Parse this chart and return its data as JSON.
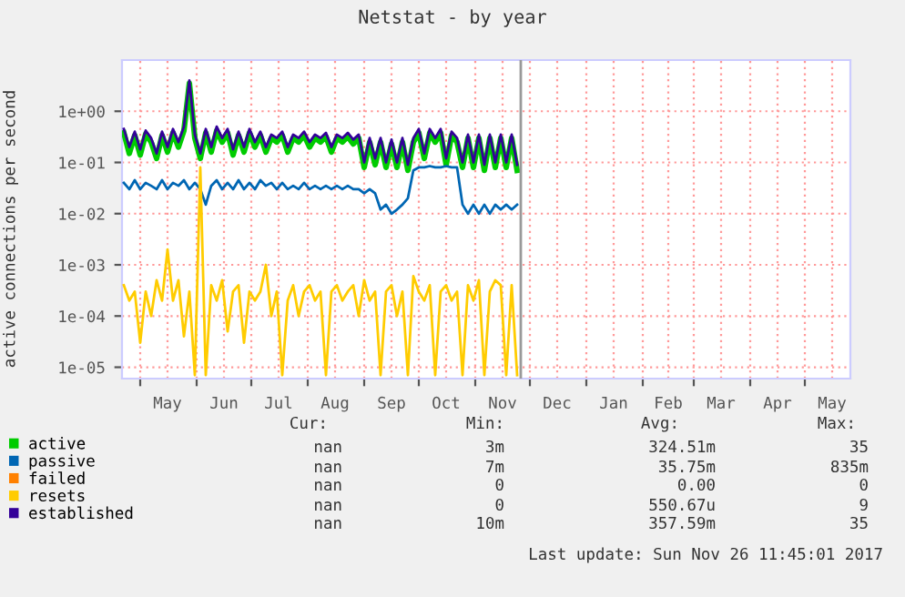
{
  "chart_data": {
    "type": "line",
    "title": "Netstat - by year",
    "ylabel": "active connections per second",
    "x": [
      "2017-04-22",
      "2017-04-25",
      "2017-04-28",
      "2017-05-01",
      "2017-05-04",
      "2017-05-07",
      "2017-05-10",
      "2017-05-13",
      "2017-05-16",
      "2017-05-19",
      "2017-05-22",
      "2017-05-25",
      "2017-05-28",
      "2017-05-31",
      "2017-06-03",
      "2017-06-06",
      "2017-06-09",
      "2017-06-12",
      "2017-06-15",
      "2017-06-18",
      "2017-06-21",
      "2017-06-24",
      "2017-06-27",
      "2017-06-30",
      "2017-07-03",
      "2017-07-06",
      "2017-07-09",
      "2017-07-12",
      "2017-07-15",
      "2017-07-18",
      "2017-07-21",
      "2017-07-24",
      "2017-07-27",
      "2017-07-30",
      "2017-08-02",
      "2017-08-05",
      "2017-08-08",
      "2017-08-11",
      "2017-08-14",
      "2017-08-17",
      "2017-08-20",
      "2017-08-23",
      "2017-08-26",
      "2017-08-29",
      "2017-09-01",
      "2017-09-04",
      "2017-09-07",
      "2017-09-10",
      "2017-09-13",
      "2017-09-16",
      "2017-09-19",
      "2017-09-22",
      "2017-09-25",
      "2017-09-28",
      "2017-10-01",
      "2017-10-04",
      "2017-10-07",
      "2017-10-10",
      "2017-10-13",
      "2017-10-16",
      "2017-10-19",
      "2017-10-22",
      "2017-10-25",
      "2017-10-28",
      "2017-10-31",
      "2017-11-03",
      "2017-11-06",
      "2017-11-09",
      "2017-11-12",
      "2017-11-15",
      "2017-11-18",
      "2017-11-21",
      "2017-11-24"
    ],
    "series": [
      {
        "name": "active",
        "color": "#00cc00",
        "values": [
          0.38,
          0.15,
          0.34,
          0.14,
          0.36,
          0.25,
          0.12,
          0.34,
          0.16,
          0.38,
          0.2,
          0.42,
          3.5,
          0.3,
          0.12,
          0.38,
          0.16,
          0.42,
          0.25,
          0.38,
          0.14,
          0.34,
          0.16,
          0.38,
          0.2,
          0.34,
          0.16,
          0.3,
          0.25,
          0.34,
          0.16,
          0.3,
          0.25,
          0.34,
          0.2,
          0.3,
          0.25,
          0.32,
          0.16,
          0.3,
          0.25,
          0.32,
          0.23,
          0.3,
          0.08,
          0.25,
          0.09,
          0.25,
          0.08,
          0.23,
          0.08,
          0.25,
          0.07,
          0.25,
          0.38,
          0.12,
          0.38,
          0.25,
          0.38,
          0.09,
          0.34,
          0.25,
          0.08,
          0.3,
          0.08,
          0.3,
          0.07,
          0.3,
          0.08,
          0.3,
          0.08,
          0.3,
          0.07
        ]
      },
      {
        "name": "passive",
        "color": "#0066b3",
        "values": [
          0.04,
          0.03,
          0.045,
          0.03,
          0.04,
          0.035,
          0.03,
          0.045,
          0.03,
          0.04,
          0.035,
          0.045,
          0.03,
          0.04,
          0.03,
          0.015,
          0.035,
          0.045,
          0.03,
          0.04,
          0.03,
          0.045,
          0.03,
          0.04,
          0.03,
          0.045,
          0.035,
          0.04,
          0.03,
          0.04,
          0.03,
          0.035,
          0.03,
          0.04,
          0.03,
          0.035,
          0.03,
          0.035,
          0.03,
          0.035,
          0.03,
          0.035,
          0.03,
          0.03,
          0.025,
          0.03,
          0.025,
          0.012,
          0.015,
          0.01,
          0.012,
          0.015,
          0.02,
          0.07,
          0.08,
          0.08,
          0.085,
          0.08,
          0.08,
          0.085,
          0.08,
          0.08,
          0.015,
          0.01,
          0.015,
          0.01,
          0.015,
          0.01,
          0.015,
          0.012,
          0.015,
          0.012,
          0.015
        ]
      },
      {
        "name": "failed",
        "color": "#ff8000",
        "values": [
          null,
          null,
          null,
          null,
          null,
          null,
          null,
          null,
          null,
          null,
          null,
          null,
          null,
          null,
          null,
          null,
          null,
          null,
          null,
          null,
          null,
          null,
          null,
          null,
          null,
          null,
          null,
          null,
          null,
          null,
          null,
          null,
          null,
          null,
          null,
          null,
          null,
          null,
          null,
          null,
          null,
          null,
          null,
          null,
          null,
          null,
          null,
          null,
          null,
          null,
          null,
          null,
          null,
          null,
          null,
          null,
          null,
          null,
          null,
          null,
          null,
          null,
          null,
          null,
          null,
          null,
          null,
          null,
          null,
          null,
          null,
          null,
          null
        ]
      },
      {
        "name": "resets",
        "color": "#ffcc00",
        "values": [
          0.0004,
          0.0002,
          0.0003,
          3e-05,
          0.0003,
          0.0001,
          0.0005,
          0.0002,
          0.002,
          0.0002,
          0.0005,
          4e-05,
          0.0003,
          7e-06,
          0.08,
          7e-06,
          0.0004,
          0.0002,
          0.0005,
          5e-05,
          0.0003,
          0.0004,
          3e-05,
          0.0003,
          0.0002,
          0.0003,
          0.001,
          0.0001,
          0.0003,
          7e-06,
          0.0002,
          0.0004,
          0.0001,
          0.0003,
          0.0004,
          0.0002,
          0.0003,
          7e-06,
          0.0003,
          0.0004,
          0.0002,
          0.0003,
          0.0004,
          0.0001,
          0.0005,
          0.0002,
          0.0003,
          7e-06,
          0.0003,
          0.0004,
          0.0001,
          0.0003,
          7e-06,
          0.0006,
          0.0003,
          0.0002,
          0.0004,
          7e-06,
          0.0003,
          0.0004,
          0.0002,
          0.0003,
          7e-06,
          0.0004,
          0.0002,
          0.0005,
          7e-06,
          0.0003,
          0.0005,
          0.0004,
          7e-06,
          0.0004,
          7e-06
        ]
      },
      {
        "name": "established",
        "color": "#330099",
        "values": [
          0.45,
          0.2,
          0.4,
          0.18,
          0.42,
          0.3,
          0.15,
          0.4,
          0.2,
          0.45,
          0.25,
          0.5,
          4.0,
          0.35,
          0.15,
          0.45,
          0.2,
          0.5,
          0.3,
          0.45,
          0.18,
          0.4,
          0.2,
          0.45,
          0.25,
          0.4,
          0.2,
          0.35,
          0.3,
          0.4,
          0.2,
          0.35,
          0.3,
          0.4,
          0.25,
          0.35,
          0.3,
          0.38,
          0.2,
          0.35,
          0.3,
          0.38,
          0.28,
          0.35,
          0.1,
          0.3,
          0.12,
          0.3,
          0.1,
          0.28,
          0.1,
          0.3,
          0.09,
          0.3,
          0.45,
          0.15,
          0.45,
          0.3,
          0.45,
          0.12,
          0.4,
          0.3,
          0.1,
          0.35,
          0.1,
          0.35,
          0.09,
          0.35,
          0.1,
          0.35,
          0.1,
          0.35,
          0.09
        ]
      }
    ],
    "log": "y",
    "xlim": [
      "2017-04-21",
      "2018-05-26"
    ],
    "xticks": [
      {
        "value": "2017-05-01",
        "label": null
      },
      {
        "value": "2017-05-16",
        "label": "May"
      },
      {
        "value": "2017-06-01",
        "label": null
      },
      {
        "value": "2017-06-16",
        "label": "Jun"
      },
      {
        "value": "2017-07-01",
        "label": null
      },
      {
        "value": "2017-07-16",
        "label": "Jul"
      },
      {
        "value": "2017-08-01",
        "label": null
      },
      {
        "value": "2017-08-16",
        "label": "Aug"
      },
      {
        "value": "2017-09-01",
        "label": null
      },
      {
        "value": "2017-09-16",
        "label": "Sep"
      },
      {
        "value": "2017-10-01",
        "label": null
      },
      {
        "value": "2017-10-16",
        "label": "Oct"
      },
      {
        "value": "2017-11-01",
        "label": null
      },
      {
        "value": "2017-11-16",
        "label": "Nov"
      },
      {
        "value": "2017-12-01",
        "label": null
      },
      {
        "value": "2017-12-16",
        "label": "Dec"
      },
      {
        "value": "2018-01-01",
        "label": null
      },
      {
        "value": "2018-01-16",
        "label": "Jan"
      },
      {
        "value": "2018-02-01",
        "label": null
      },
      {
        "value": "2018-02-15",
        "label": "Feb"
      },
      {
        "value": "2018-03-01",
        "label": null
      },
      {
        "value": "2018-03-16",
        "label": "Mar"
      },
      {
        "value": "2018-04-01",
        "label": null
      },
      {
        "value": "2018-04-16",
        "label": "Apr"
      },
      {
        "value": "2018-05-01",
        "label": null
      },
      {
        "value": "2018-05-16",
        "label": "May"
      }
    ],
    "ylim": [
      6e-06,
      10
    ],
    "yticks": [
      {
        "value": 1e-05,
        "label": "1e-05"
      },
      {
        "value": 0.0001,
        "label": "1e-04"
      },
      {
        "value": 0.001,
        "label": "1e-03"
      },
      {
        "value": 0.01,
        "label": "1e-02"
      },
      {
        "value": 0.1,
        "label": "1e-01"
      },
      {
        "value": 1,
        "label": "1e+00"
      }
    ],
    "ref_lines": [
      {
        "axis": "x",
        "value": "2017-11-26",
        "color": "#999999"
      }
    ],
    "grid": true,
    "legend": "bottom left",
    "annotations": [
      "Cur:",
      "Min:",
      "Avg:",
      "Max:",
      "nan",
      "3m",
      "324.51m",
      "35",
      "nan",
      "7m",
      "35.75m",
      "835m",
      "nan",
      "0",
      "0.00",
      "0",
      "nan",
      "0",
      "550.67u",
      "9",
      "nan",
      "10m",
      "357.59m",
      "35",
      "Last update: Sun Nov 26 11:45:01 2017"
    ]
  }
}
